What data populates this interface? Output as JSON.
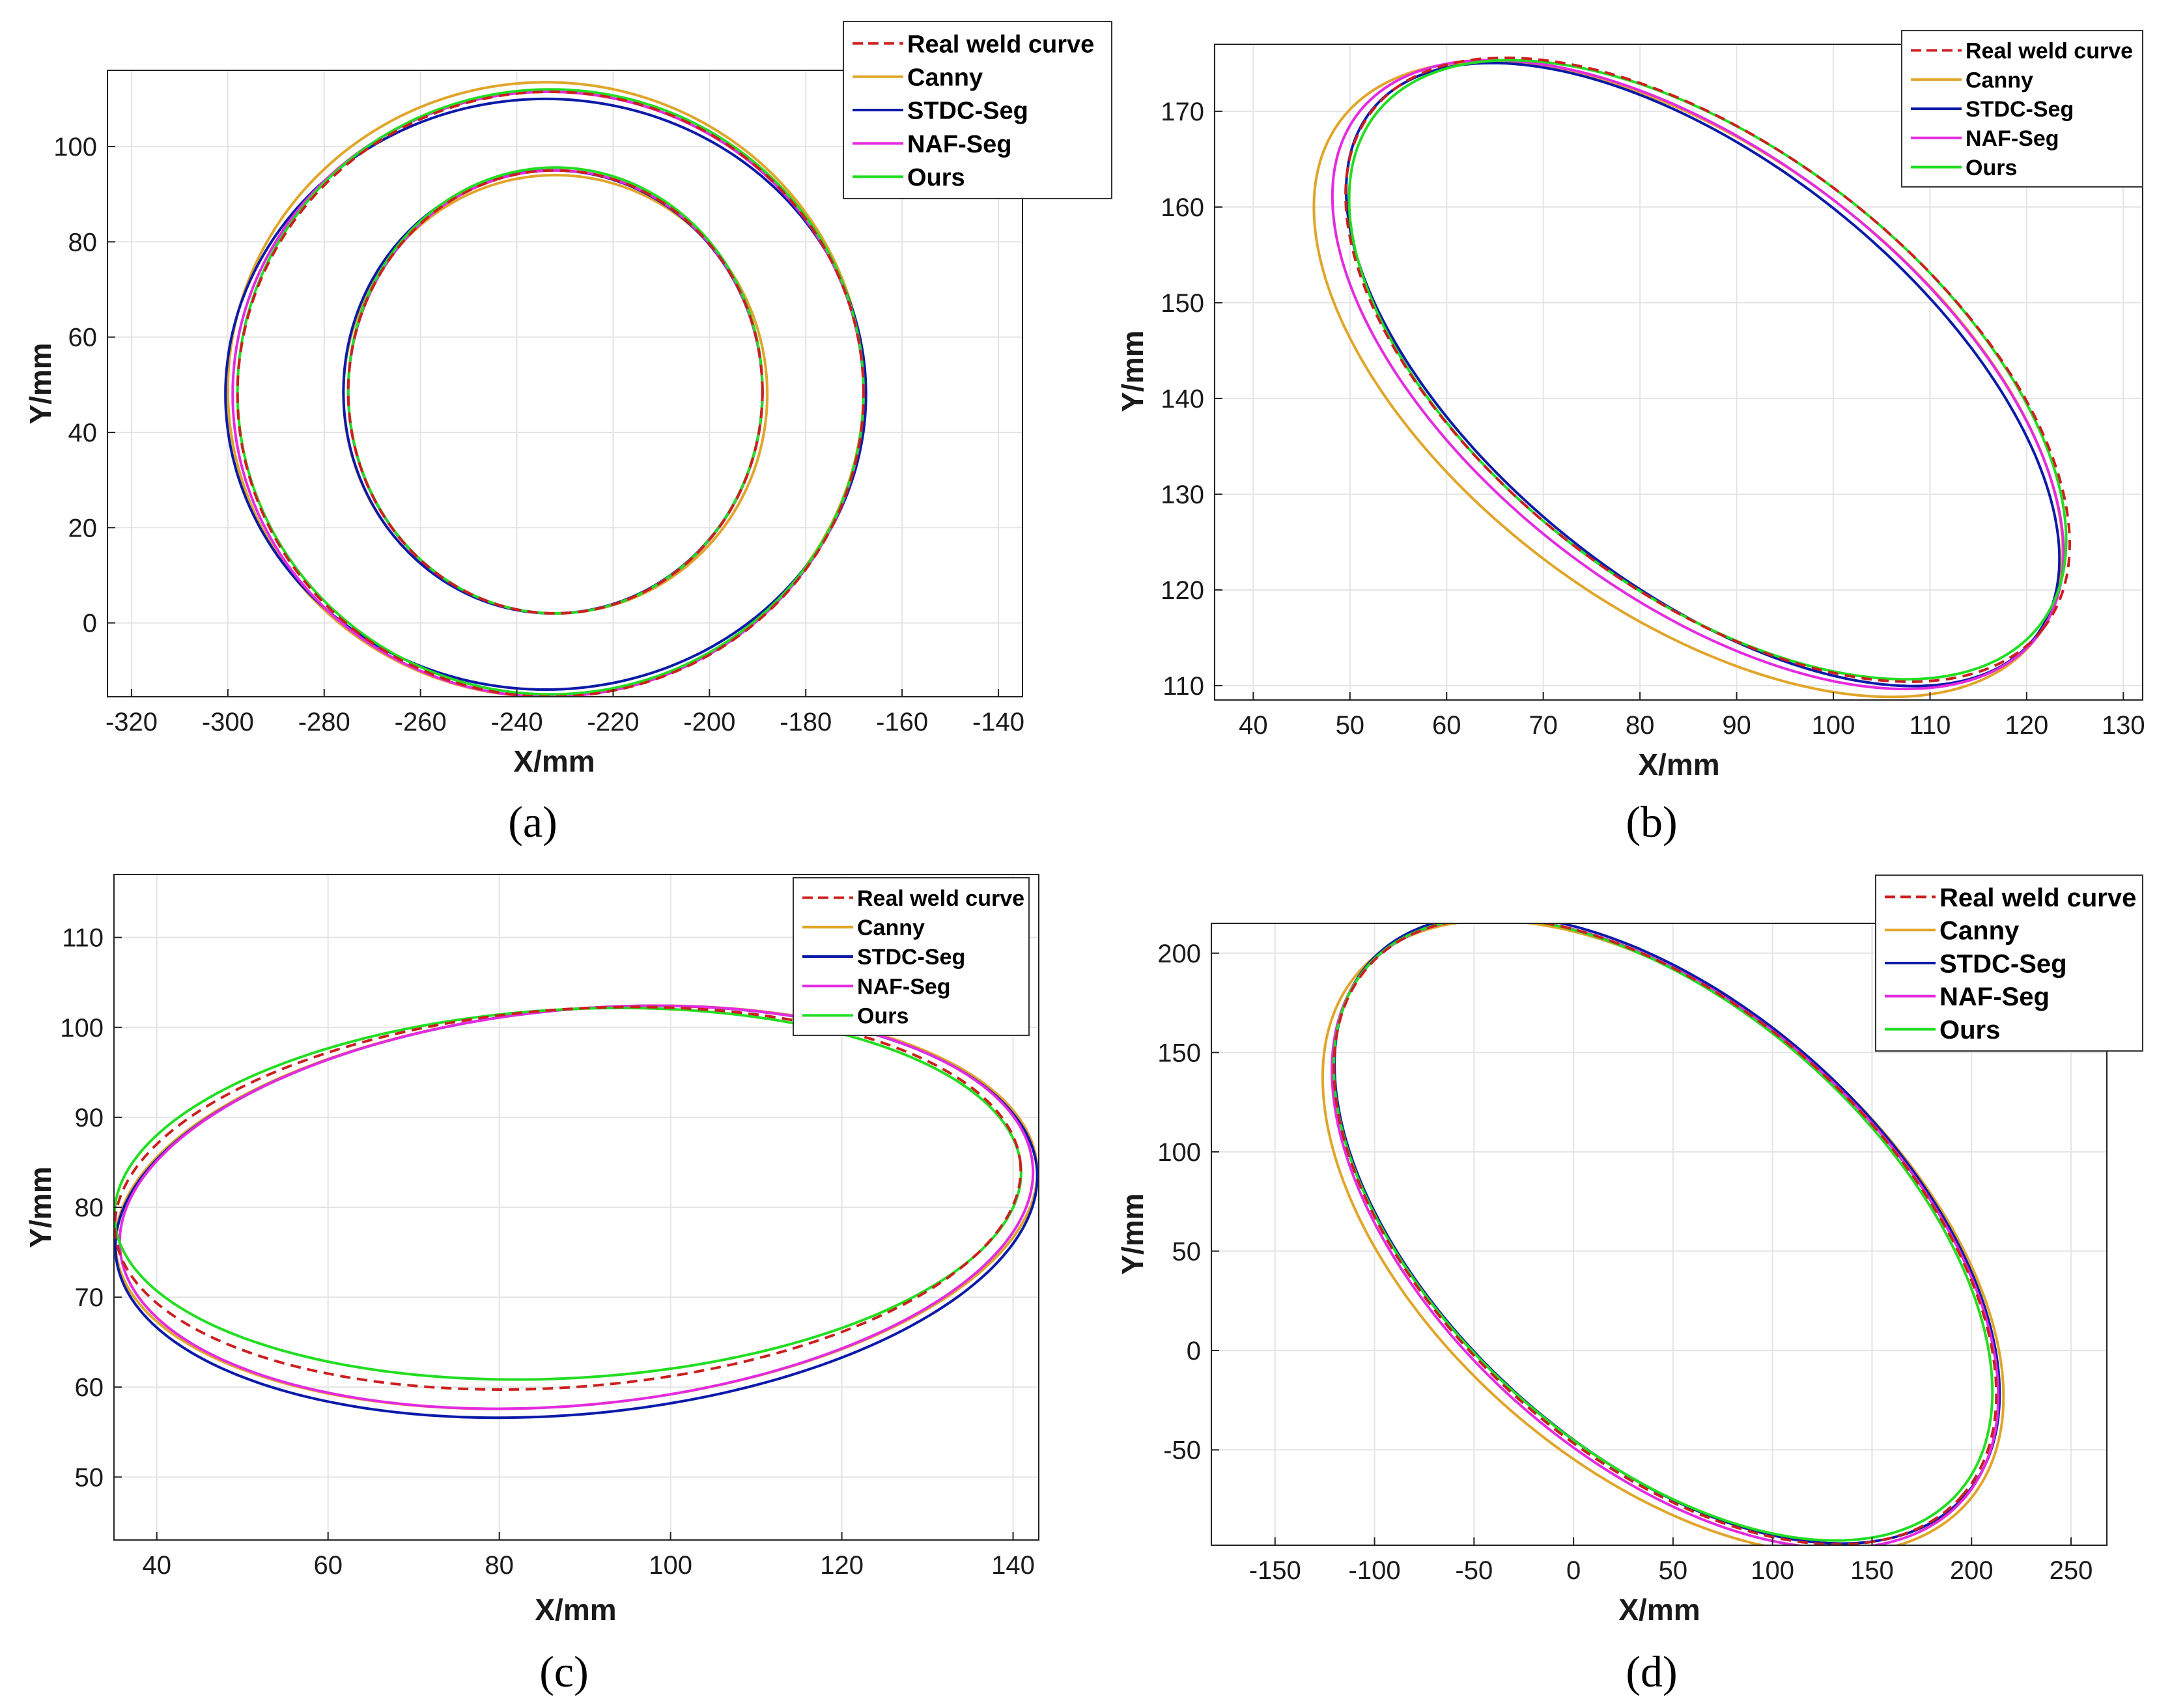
{
  "legend_entries": [
    {
      "name": "Real weld curve",
      "color": "#cc1f1f",
      "dash": true
    },
    {
      "name": "Canny",
      "color": "#e0a52a",
      "dash": false
    },
    {
      "name": "STDC-Seg",
      "color": "#0b1aa8",
      "dash": false
    },
    {
      "name": "NAF-Seg",
      "color": "#e42be0",
      "dash": false
    },
    {
      "name": "Ours",
      "color": "#22dd22",
      "dash": false
    }
  ],
  "chart_data": [
    {
      "type": "line",
      "caption": "(a)",
      "xlabel": "X/mm",
      "ylabel": "Y/mm",
      "xlim": [
        -325,
        -135
      ],
      "ylim": [
        -15.5,
        116
      ],
      "xticks": [
        -320,
        -300,
        -280,
        -260,
        -240,
        -220,
        -200,
        -180,
        -160,
        -140
      ],
      "yticks": [
        0,
        20,
        40,
        60,
        80,
        100
      ],
      "legend_position": "top-right",
      "rings": [
        {
          "series": "Real weld curve",
          "cx": -233,
          "cy": 48,
          "rx": 65,
          "ry": 63.5,
          "tilt": 0
        },
        {
          "series": "Canny",
          "cx": -234,
          "cy": 49,
          "rx": 66,
          "ry": 64.5,
          "tilt": 0
        },
        {
          "series": "STDC-Seg",
          "cx": -234,
          "cy": 48,
          "rx": 66.5,
          "ry": 62,
          "tilt": 0
        },
        {
          "series": "NAF-Seg",
          "cx": -233.5,
          "cy": 48,
          "rx": 65.5,
          "ry": 63.5,
          "tilt": 0
        },
        {
          "series": "Ours",
          "cx": -233,
          "cy": 48.5,
          "rx": 65,
          "ry": 63.5,
          "tilt": 0
        },
        {
          "series": "Real weld curve",
          "cx": -232,
          "cy": 48.5,
          "rx": 43,
          "ry": 46.5,
          "tilt": 0
        },
        {
          "series": "Canny",
          "cx": -232,
          "cy": 48,
          "rx": 44,
          "ry": 46,
          "tilt": 0
        },
        {
          "series": "STDC-Seg",
          "cx": -232.5,
          "cy": 48.5,
          "rx": 43.5,
          "ry": 46.5,
          "tilt": 0
        },
        {
          "series": "NAF-Seg",
          "cx": -232,
          "cy": 48.5,
          "rx": 43,
          "ry": 46.5,
          "tilt": 0
        },
        {
          "series": "Ours",
          "cx": -232,
          "cy": 48.8,
          "rx": 43,
          "ry": 46.8,
          "tilt": 0
        }
      ]
    },
    {
      "type": "line",
      "caption": "(b)",
      "xlabel": "X/mm",
      "ylabel": "Y/mm",
      "xlim": [
        36,
        132
      ],
      "ylim": [
        108.5,
        177
      ],
      "xticks": [
        40,
        50,
        60,
        70,
        80,
        90,
        100,
        110,
        120,
        130
      ],
      "yticks": [
        110,
        120,
        130,
        140,
        150,
        160,
        170
      ],
      "legend_position": "top-right",
      "rings": [
        {
          "series": "Real weld curve",
          "cx": 87,
          "cy": 143,
          "rx": 44,
          "ry": 23,
          "tilt": -38
        },
        {
          "series": "Canny",
          "cx": 85,
          "cy": 142,
          "rx": 45,
          "ry": 24,
          "tilt": -37
        },
        {
          "series": "STDC-Seg",
          "cx": 86.5,
          "cy": 142.5,
          "rx": 44,
          "ry": 22,
          "tilt": -39
        },
        {
          "series": "NAF-Seg",
          "cx": 86,
          "cy": 142.5,
          "rx": 44.5,
          "ry": 23,
          "tilt": -38
        },
        {
          "series": "Ours",
          "cx": 87,
          "cy": 143,
          "rx": 43.5,
          "ry": 23,
          "tilt": -38
        }
      ]
    },
    {
      "type": "line",
      "caption": "(c)",
      "xlabel": "X/mm",
      "ylabel": "Y/mm",
      "xlim": [
        35,
        143
      ],
      "ylim": [
        43,
        117
      ],
      "xticks": [
        40,
        60,
        80,
        100,
        120,
        140
      ],
      "yticks": [
        50,
        60,
        70,
        80,
        90,
        100,
        110
      ],
      "legend_position": "top-right",
      "rings": [
        {
          "series": "Real weld curve",
          "cx": 88,
          "cy": 81,
          "rx": 53,
          "ry": 21,
          "tilt": 4
        },
        {
          "series": "Canny",
          "cx": 89,
          "cy": 80,
          "rx": 54,
          "ry": 22,
          "tilt": 5
        },
        {
          "series": "STDC-Seg",
          "cx": 89,
          "cy": 79.5,
          "rx": 54,
          "ry": 22.5,
          "tilt": 5
        },
        {
          "series": "NAF-Seg",
          "cx": 89,
          "cy": 80,
          "rx": 53.5,
          "ry": 22,
          "tilt": 5
        },
        {
          "series": "Ours",
          "cx": 88,
          "cy": 81.5,
          "rx": 53,
          "ry": 20.5,
          "tilt": 3
        }
      ]
    },
    {
      "type": "line",
      "caption": "(d)",
      "xlabel": "X/mm",
      "ylabel": "Y/mm",
      "xlim": [
        -182,
        268
      ],
      "ylim": [
        -98,
        215
      ],
      "xticks": [
        -150,
        -100,
        -50,
        0,
        50,
        100,
        150,
        200,
        250
      ],
      "yticks": [
        -50,
        0,
        50,
        100,
        150,
        200
      ],
      "legend_position": "top-right",
      "rings": [
        {
          "series": "Real weld curve",
          "cx": 46,
          "cy": 60,
          "rx": 200,
          "ry": 112,
          "tilt": -42
        },
        {
          "series": "Canny",
          "cx": 45,
          "cy": 57,
          "rx": 203,
          "ry": 116,
          "tilt": -41
        },
        {
          "series": "STDC-Seg",
          "cx": 47,
          "cy": 61,
          "rx": 201,
          "ry": 112,
          "tilt": -42
        },
        {
          "series": "NAF-Seg",
          "cx": 46,
          "cy": 59,
          "rx": 201,
          "ry": 113,
          "tilt": -42
        },
        {
          "series": "Ours",
          "cx": 45,
          "cy": 61,
          "rx": 199,
          "ry": 111,
          "tilt": -42
        }
      ]
    }
  ]
}
